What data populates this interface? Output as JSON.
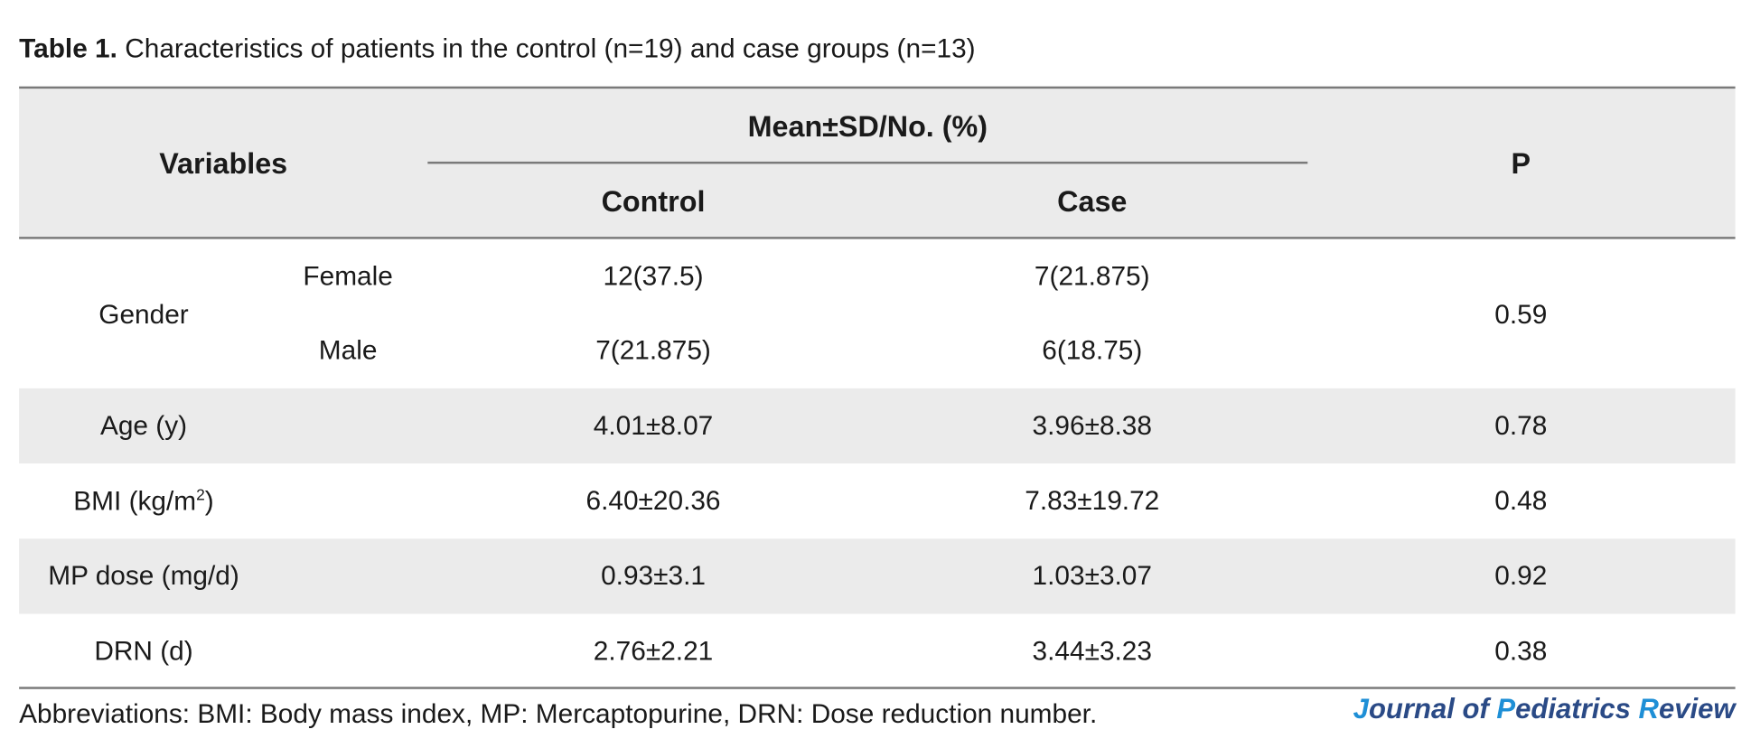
{
  "caption": {
    "label": "Table 1.",
    "text": "Characteristics of patients in the control (n=19) and case groups (n=13)"
  },
  "header": {
    "variables": "Variables",
    "group": "Mean±SD/No. (%)",
    "control": "Control",
    "case": "Case",
    "p": "P"
  },
  "rows": {
    "gender": {
      "label": "Gender",
      "female": {
        "label": "Female",
        "control": "12(37.5)",
        "case": "7(21.875)"
      },
      "male": {
        "label": "Male",
        "control": "7(21.875)",
        "case": "6(18.75)"
      },
      "p": "0.59"
    },
    "age": {
      "label": "Age (y)",
      "control": "4.01±8.07",
      "case": "3.96±8.38",
      "p": "0.78"
    },
    "bmi": {
      "label_main": "BMI (kg/m",
      "label_sup": "2",
      "label_end": ")",
      "control": "6.40±20.36",
      "case": "7.83±19.72",
      "p": "0.48"
    },
    "mp": {
      "label": "MP dose (mg/d)",
      "control": "0.93±3.1",
      "case": "1.03±3.07",
      "p": "0.92"
    },
    "drn": {
      "label": "DRN (d)",
      "control": "2.76±2.21",
      "case": "3.44±3.23",
      "p": "0.38"
    }
  },
  "footnote": "Abbreviations: BMI: Body mass index, MP: Mercaptopurine, DRN: Dose reduction number.",
  "journal": {
    "j": "J",
    "ournal_of": "ournal of ",
    "p": "P",
    "ediatrics": "ediatrics ",
    "r": "R",
    "eview": "eview"
  }
}
